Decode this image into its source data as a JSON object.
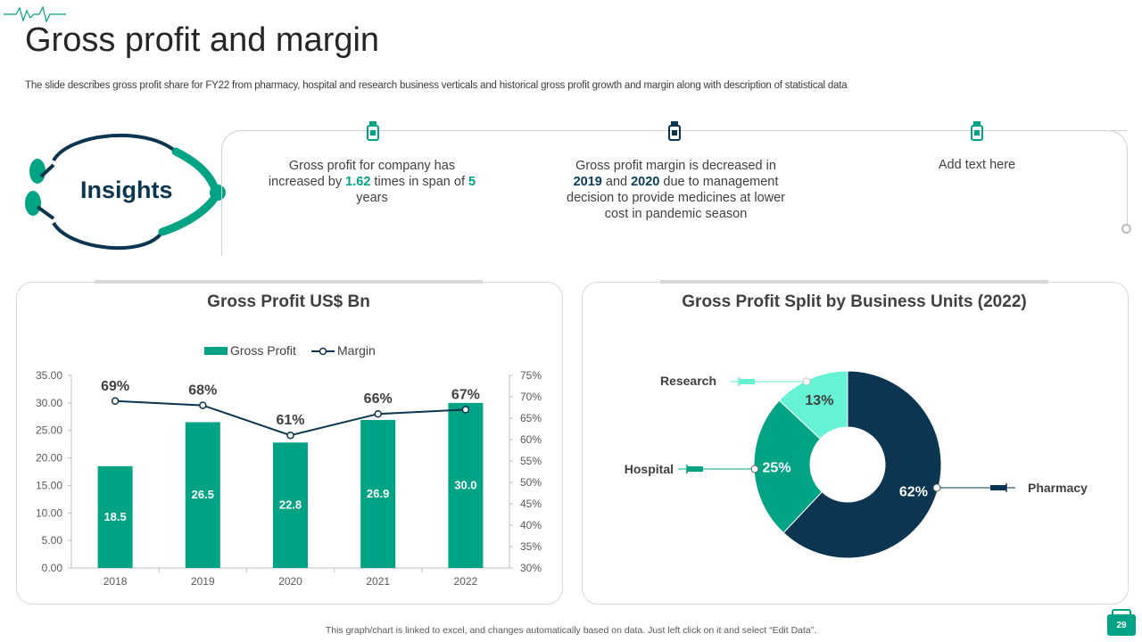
{
  "slide": {
    "title": "Gross profit and margin",
    "subtitle": "The slide describes gross profit share for FY22 from pharmacy, hospital and research business verticals and historical gross profit growth and margin along with description of statistical data",
    "footer": "This graph/chart is linked to excel, and changes automatically based on data. Just left click on it and select “Edit Data”.",
    "page_number": "29"
  },
  "insights": {
    "label": "Insights",
    "items": [
      {
        "pre": "Gross profit for company has increased by ",
        "num1": "1.62",
        "mid": " times in span of ",
        "num2": "5",
        "post": " years",
        "icon_color": "#00a384"
      },
      {
        "pre": "Gross profit margin is decreased in ",
        "num1": "2019",
        "mid": " and ",
        "num2": "2020",
        "post": " due to management decision to provide medicines at lower cost in pandemic season",
        "icon_color": "#0b3550"
      },
      {
        "text": "Add text here",
        "icon_color": "#00a384"
      }
    ]
  },
  "colors": {
    "teal": "#00a384",
    "navy": "#0b3550",
    "mint": "#66f2d4"
  },
  "chart_data": [
    {
      "type": "bar",
      "title": "Gross Profit US$ Bn",
      "categories": [
        "2018",
        "2019",
        "2020",
        "2021",
        "2022"
      ],
      "series": [
        {
          "name": "Gross Profit",
          "type": "bar",
          "axis": "left",
          "values": [
            18.5,
            26.5,
            22.8,
            26.9,
            30.0
          ],
          "value_labels": [
            "18.5",
            "26.5",
            "22.8",
            "26.9",
            "30.0"
          ]
        },
        {
          "name": "Margin",
          "type": "line",
          "axis": "right",
          "values": [
            69,
            68,
            61,
            66,
            67
          ],
          "value_labels": [
            "69%",
            "68%",
            "61%",
            "66%",
            "67%"
          ]
        }
      ],
      "y_left": {
        "range": [
          0,
          35
        ],
        "ticks": [
          "0.00",
          "5.00",
          "10.00",
          "15.00",
          "20.00",
          "25.00",
          "30.00",
          "35.00"
        ]
      },
      "y_right": {
        "range": [
          30,
          75
        ],
        "ticks": [
          "30%",
          "35%",
          "40%",
          "45%",
          "50%",
          "55%",
          "60%",
          "65%",
          "70%",
          "75%"
        ]
      },
      "legend": [
        "Gross Profit",
        "Margin"
      ],
      "legend_position": "top"
    },
    {
      "type": "pie",
      "donut": true,
      "title": "Gross Profit Split by Business Units (2022)",
      "labels": [
        "Pharmacy",
        "Hospital",
        "Research"
      ],
      "values": [
        62,
        25,
        13
      ],
      "value_labels": [
        "62%",
        "25%",
        "13%"
      ],
      "colors": [
        "#0b3550",
        "#00a384",
        "#66f2d4"
      ]
    }
  ]
}
